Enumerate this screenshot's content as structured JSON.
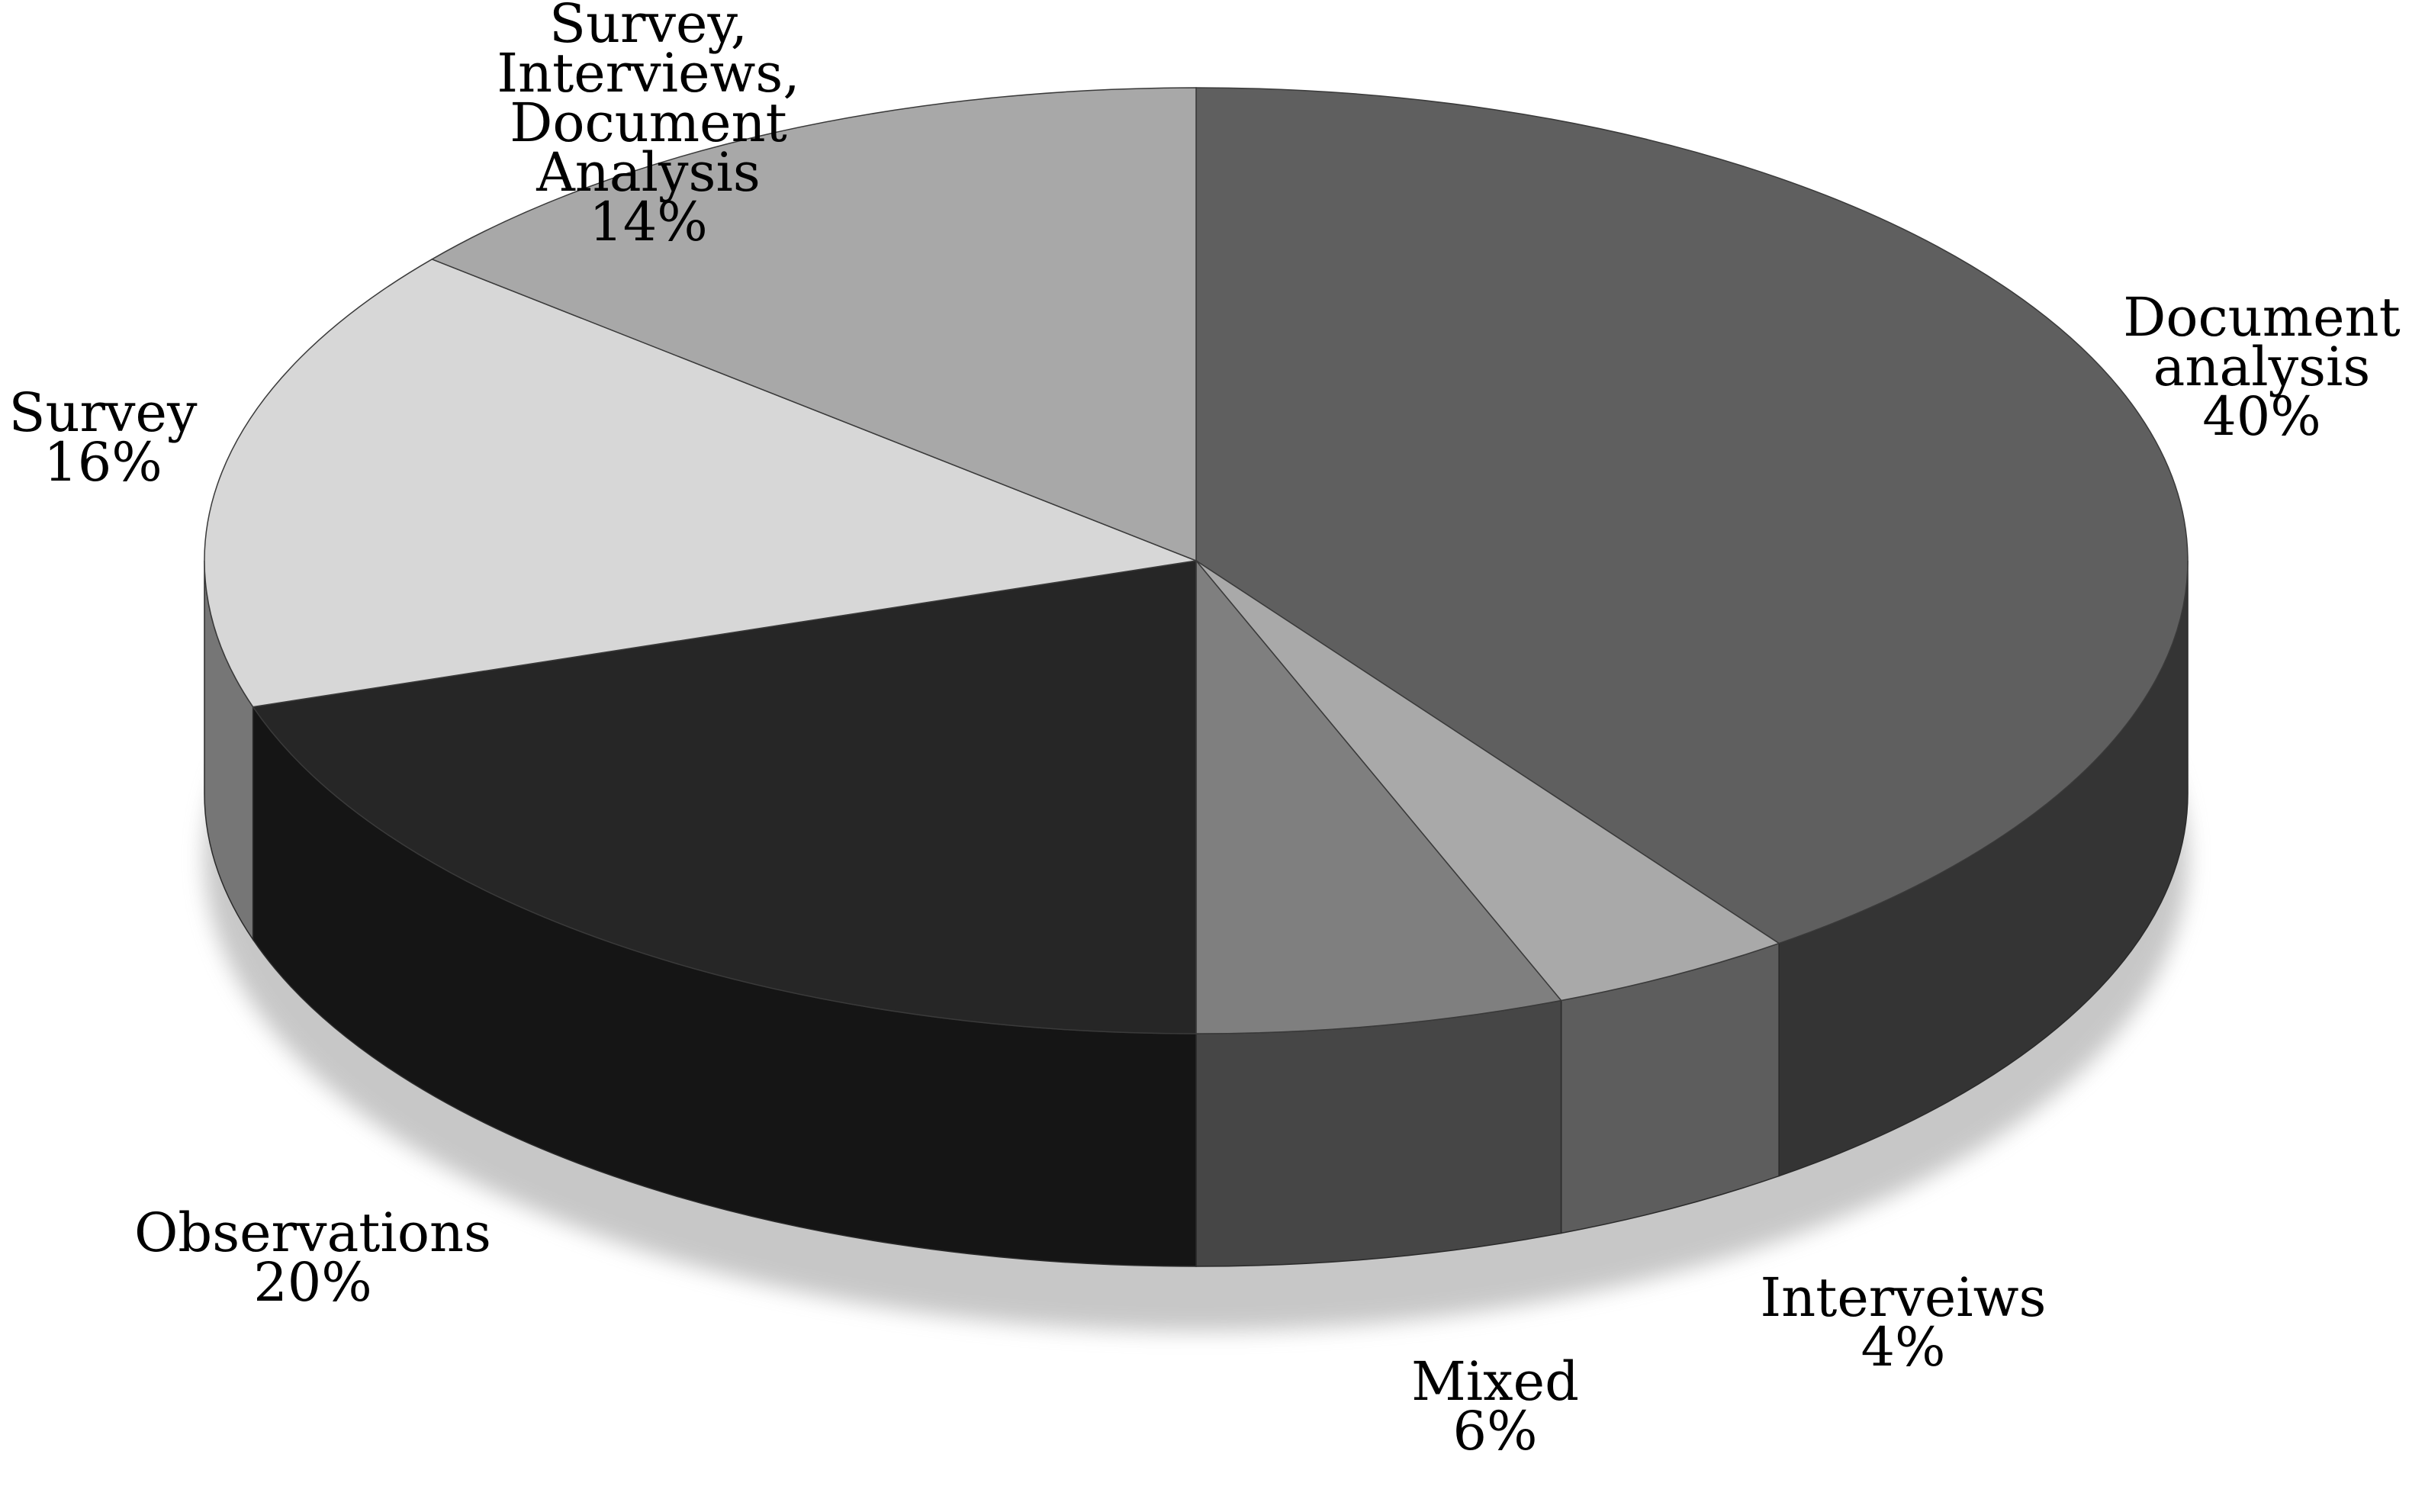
{
  "chart_data": {
    "type": "pie",
    "style": "3d",
    "slices": [
      {
        "label": [
          "Document",
          "analysis"
        ],
        "value": 40,
        "value_label": "40%",
        "color": "#5f5f5f"
      },
      {
        "label": [
          "Interveiws"
        ],
        "value": 4,
        "value_label": "4%",
        "color": "#a9a9a9"
      },
      {
        "label": [
          "Mixed"
        ],
        "value": 6,
        "value_label": "6%",
        "color": "#7f7f7f"
      },
      {
        "label": [
          "Observations"
        ],
        "value": 20,
        "value_label": "20%",
        "color": "#262626"
      },
      {
        "label": [
          "Survey"
        ],
        "value": 16,
        "value_label": "16%",
        "color": "#d7d7d7"
      },
      {
        "label": [
          "Survey,",
          "Interviews,",
          "Document",
          "Analysis"
        ],
        "value": 14,
        "value_label": "14%",
        "color": "#a8a8a8"
      }
    ]
  }
}
